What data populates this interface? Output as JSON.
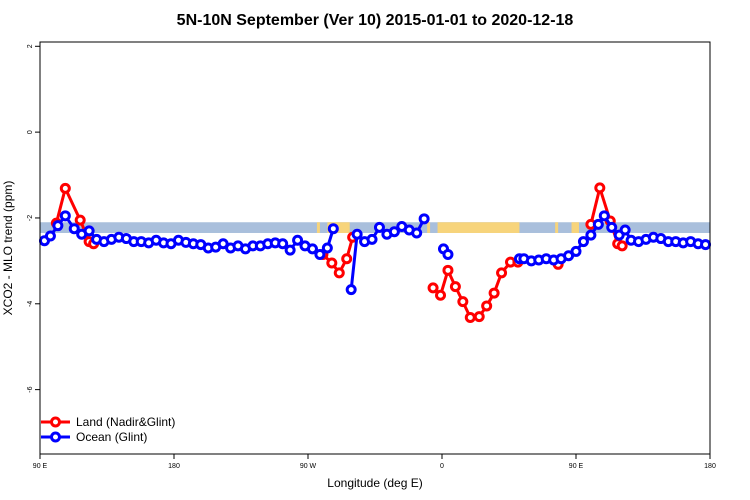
{
  "chart_data": {
    "type": "line",
    "title": "5N-10N September (Ver 10)   2015-01-01 to 2020-12-18",
    "xlabel": "Longitude (deg E)",
    "ylabel": "XCO2 - MLO trend (ppm)",
    "x_ticks": [
      {
        "value": 90,
        "label": "90 E"
      },
      {
        "value": 180,
        "label": "180"
      },
      {
        "value": 270,
        "label": "90 W"
      },
      {
        "value": 360,
        "label": "0"
      },
      {
        "value": 450,
        "label": "90 E"
      },
      {
        "value": 540,
        "label": "180"
      }
    ],
    "y_ticks": [
      {
        "value": 2,
        "label": "2"
      },
      {
        "value": 0,
        "label": "0"
      },
      {
        "value": -2,
        "label": "-2"
      },
      {
        "value": -4,
        "label": "-4"
      },
      {
        "value": -6,
        "label": "-6"
      }
    ],
    "xlim": [
      90,
      540
    ],
    "ylim": [
      -7.5,
      2.1
    ],
    "grid": false,
    "legend": {
      "position": "bottom-left"
    },
    "land_ocean_band": {
      "y_range": [
        -2.35,
        -2.1
      ],
      "ocean_color": "#a9bfdc",
      "land_color": "#f7d47b",
      "land_segments": [
        [
          276,
          278
        ],
        [
          283,
          298
        ],
        [
          350,
          352
        ],
        [
          357,
          412
        ],
        [
          436,
          438
        ],
        [
          447,
          452
        ]
      ]
    },
    "series": [
      {
        "name": "Land (Nadir&Glint)",
        "color": "#ff0000",
        "segments": [
          [
            [
              101,
              -2.12
            ],
            [
              107,
              -1.31
            ],
            [
              117,
              -2.05
            ],
            [
              123,
              -2.55
            ],
            [
              126,
              -2.6
            ]
          ],
          [
            [
              280,
              -2.85
            ],
            [
              286,
              -3.05
            ],
            [
              291,
              -3.28
            ],
            [
              296,
              -2.95
            ],
            [
              300,
              -2.45
            ]
          ],
          [
            [
              354,
              -3.63
            ],
            [
              359,
              -3.8
            ],
            [
              364,
              -3.22
            ],
            [
              369,
              -3.6
            ],
            [
              374,
              -3.95
            ],
            [
              379,
              -4.32
            ],
            [
              385,
              -4.3
            ],
            [
              390,
              -4.05
            ],
            [
              395,
              -3.75
            ],
            [
              400,
              -3.28
            ],
            [
              406,
              -3.03
            ],
            [
              411,
              -3.03
            ]
          ],
          [
            [
              438,
              -3.08
            ]
          ],
          [
            [
              460,
              -2.15
            ],
            [
              466,
              -1.3
            ],
            [
              473,
              -2.07
            ],
            [
              478,
              -2.6
            ],
            [
              481,
              -2.65
            ]
          ]
        ]
      },
      {
        "name": "Ocean (Glint)",
        "color": "#0000ff",
        "segments": [
          [
            [
              93,
              -2.53
            ],
            [
              97,
              -2.42
            ],
            [
              102,
              -2.18
            ],
            [
              107,
              -1.95
            ],
            [
              113,
              -2.25
            ],
            [
              118,
              -2.38
            ],
            [
              123,
              -2.3
            ],
            [
              128,
              -2.5
            ],
            [
              133,
              -2.55
            ],
            [
              138,
              -2.5
            ],
            [
              143,
              -2.45
            ],
            [
              148,
              -2.48
            ],
            [
              153,
              -2.55
            ],
            [
              158,
              -2.55
            ],
            [
              163,
              -2.58
            ],
            [
              168,
              -2.52
            ],
            [
              173,
              -2.58
            ],
            [
              178,
              -2.6
            ],
            [
              183,
              -2.52
            ],
            [
              188,
              -2.57
            ],
            [
              193,
              -2.6
            ],
            [
              198,
              -2.62
            ],
            [
              203,
              -2.7
            ],
            [
              208,
              -2.68
            ],
            [
              213,
              -2.6
            ],
            [
              218,
              -2.7
            ],
            [
              223,
              -2.65
            ],
            [
              228,
              -2.72
            ],
            [
              233,
              -2.65
            ],
            [
              238,
              -2.65
            ],
            [
              243,
              -2.6
            ],
            [
              248,
              -2.58
            ],
            [
              253,
              -2.6
            ],
            [
              258,
              -2.75
            ],
            [
              263,
              -2.52
            ],
            [
              268,
              -2.65
            ],
            [
              273,
              -2.72
            ],
            [
              278,
              -2.85
            ],
            [
              283,
              -2.7
            ],
            [
              287,
              -2.25
            ]
          ],
          [
            [
              299,
              -3.67
            ],
            [
              303,
              -2.38
            ],
            [
              308,
              -2.55
            ],
            [
              313,
              -2.5
            ],
            [
              318,
              -2.22
            ],
            [
              323,
              -2.38
            ],
            [
              328,
              -2.32
            ],
            [
              333,
              -2.2
            ],
            [
              338,
              -2.28
            ],
            [
              343,
              -2.35
            ],
            [
              348,
              -2.02
            ]
          ],
          [
            [
              361,
              -2.72
            ],
            [
              364,
              -2.85
            ]
          ],
          [
            [
              412,
              -2.95
            ],
            [
              415,
              -2.95
            ],
            [
              420,
              -3.0
            ],
            [
              425,
              -2.98
            ],
            [
              430,
              -2.95
            ],
            [
              435,
              -2.98
            ],
            [
              440,
              -2.95
            ],
            [
              445,
              -2.88
            ],
            [
              450,
              -2.78
            ],
            [
              455,
              -2.55
            ],
            [
              460,
              -2.4
            ],
            [
              465,
              -2.15
            ],
            [
              469,
              -1.95
            ],
            [
              474,
              -2.22
            ],
            [
              479,
              -2.4
            ],
            [
              483,
              -2.28
            ],
            [
              487,
              -2.52
            ],
            [
              492,
              -2.55
            ],
            [
              497,
              -2.5
            ],
            [
              502,
              -2.45
            ],
            [
              507,
              -2.48
            ],
            [
              512,
              -2.55
            ],
            [
              517,
              -2.55
            ],
            [
              522,
              -2.58
            ],
            [
              527,
              -2.55
            ],
            [
              532,
              -2.6
            ],
            [
              537,
              -2.62
            ]
          ]
        ]
      }
    ]
  }
}
